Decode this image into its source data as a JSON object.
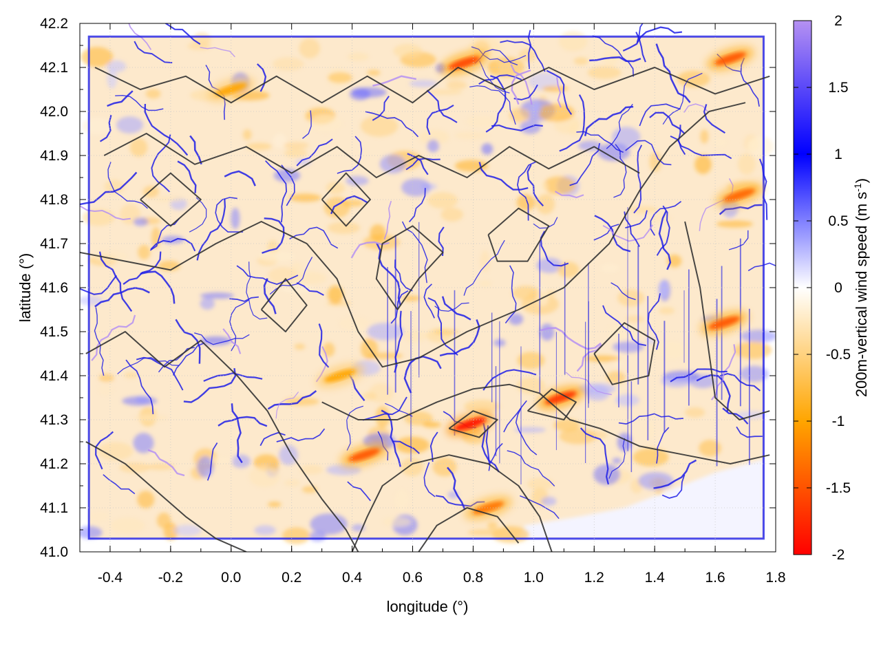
{
  "chart_data": {
    "type": "heatmap",
    "title": "",
    "xlabel": "longitude (°)",
    "ylabel": "latitude (°)",
    "xlim": [
      -0.5,
      1.8
    ],
    "ylim": [
      41.0,
      42.2
    ],
    "x_ticks": [
      "-0.4",
      "-0.2",
      "0.0",
      "0.2",
      "0.4",
      "0.6",
      "0.8",
      "1.0",
      "1.2",
      "1.4",
      "1.6",
      "1.8"
    ],
    "x_tick_values": [
      -0.4,
      -0.2,
      0.0,
      0.2,
      0.4,
      0.6,
      0.8,
      1.0,
      1.2,
      1.4,
      1.6,
      1.8
    ],
    "y_ticks": [
      "41.0",
      "41.1",
      "41.2",
      "41.3",
      "41.4",
      "41.5",
      "41.6",
      "41.7",
      "41.8",
      "41.9",
      "42.0",
      "42.1",
      "42.2"
    ],
    "y_tick_values": [
      41.0,
      41.1,
      41.2,
      41.3,
      41.4,
      41.5,
      41.6,
      41.7,
      41.8,
      41.9,
      42.0,
      42.1,
      42.2
    ],
    "data_extent": {
      "lon": [
        -0.47,
        1.76
      ],
      "lat": [
        41.03,
        42.17
      ]
    },
    "colorbar": {
      "label": "200m-vertical wind speed (m s-1)",
      "label_main": "200m-vertical wind speed (m s",
      "label_sup": "-1",
      "label_end": ")",
      "range": [
        -2,
        2
      ],
      "ticks": [
        "2",
        "1.5",
        "1",
        "0.5",
        "0",
        "-0.5",
        "-1",
        "-1.5",
        "-2"
      ],
      "tick_values": [
        2,
        1.5,
        1,
        0.5,
        0,
        -0.5,
        -1,
        -1.5,
        -2
      ],
      "palette": [
        {
          "value": -2,
          "color": "#ff0000"
        },
        {
          "value": -1,
          "color": "#ffa500"
        },
        {
          "value": 0,
          "color": "#ffffff"
        },
        {
          "value": 1,
          "color": "#0000ff"
        },
        {
          "value": 2,
          "color": "#b591f2"
        }
      ]
    },
    "grid": true,
    "overlay": "terrain elevation contours (dark gray lines)",
    "features": [
      {
        "lon": 0.79,
        "lat": 41.29,
        "value": -1.9
      },
      {
        "lon": 0.77,
        "lat": 42.11,
        "value": -1.6
      },
      {
        "lon": 1.09,
        "lat": 41.35,
        "value": -1.7
      },
      {
        "lon": 0.44,
        "lat": 41.22,
        "value": -1.5
      },
      {
        "lon": 1.63,
        "lat": 41.52,
        "value": -1.5
      },
      {
        "lon": 1.68,
        "lat": 41.81,
        "value": -1.4
      },
      {
        "lon": 1.65,
        "lat": 42.12,
        "value": -1.5
      },
      {
        "lon": 0.36,
        "lat": 41.4,
        "value": -1.0
      },
      {
        "lon": 0.85,
        "lat": 41.1,
        "value": -1.3
      },
      {
        "lon": 0.0,
        "lat": 42.05,
        "value": -1.0
      }
    ]
  },
  "colors": {
    "contour": "#333333",
    "grid": "#c8c8c8",
    "axis": "#000000",
    "ridge_blue": "#1e1ee6",
    "orange": "#ffa500",
    "red": "#ff0000",
    "violet": "#b591f2"
  }
}
